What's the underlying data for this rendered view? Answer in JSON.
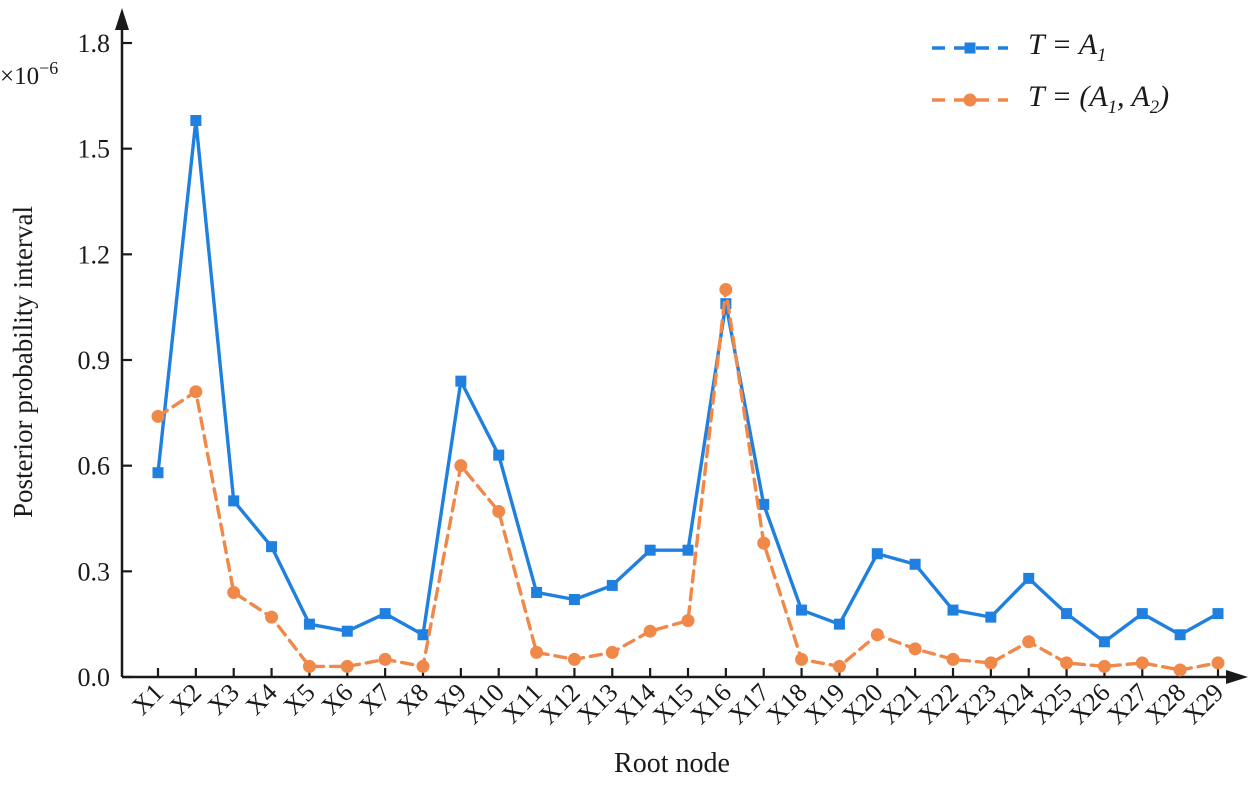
{
  "chart_data": {
    "type": "line",
    "title": "",
    "xlabel": "Root node",
    "ylabel": "Posterior probability interval",
    "y_scale_base": "×10",
    "y_scale_exp": "−6",
    "ylim": [
      0,
      1.8
    ],
    "yticks": [
      0,
      0.3,
      0.6,
      0.9,
      1.2,
      1.5,
      1.8
    ],
    "grid": false,
    "legend_position": "top-right",
    "x_tick_label_rotation_deg": -45,
    "categories": [
      "X1",
      "X2",
      "X3",
      "X4",
      "X5",
      "X6",
      "X7",
      "X8",
      "X9",
      "X10",
      "X11",
      "X12",
      "X13",
      "X14",
      "X15",
      "X16",
      "X17",
      "X18",
      "X19",
      "X20",
      "X21",
      "X22",
      "X23",
      "X24",
      "X25",
      "X26",
      "X27",
      "X28",
      "X29"
    ],
    "series": [
      {
        "name": "T = A₁",
        "color": "#1f80e0",
        "marker": "square",
        "line_style": "solid",
        "values": [
          0.58,
          1.58,
          0.5,
          0.37,
          0.15,
          0.13,
          0.18,
          0.12,
          0.84,
          0.63,
          0.24,
          0.22,
          0.26,
          0.36,
          0.36,
          1.06,
          0.49,
          0.19,
          0.15,
          0.35,
          0.32,
          0.19,
          0.17,
          0.28,
          0.18,
          0.1,
          0.18,
          0.12,
          0.18
        ]
      },
      {
        "name": "T = (A₁, A₂)",
        "color": "#f0884a",
        "marker": "circle",
        "line_style": "dashed",
        "values": [
          0.74,
          0.81,
          0.24,
          0.17,
          0.03,
          0.03,
          0.05,
          0.03,
          0.6,
          0.47,
          0.07,
          0.05,
          0.07,
          0.13,
          0.16,
          1.1,
          0.38,
          0.05,
          0.03,
          0.12,
          0.08,
          0.05,
          0.04,
          0.1,
          0.04,
          0.03,
          0.04,
          0.02,
          0.04
        ]
      }
    ]
  }
}
